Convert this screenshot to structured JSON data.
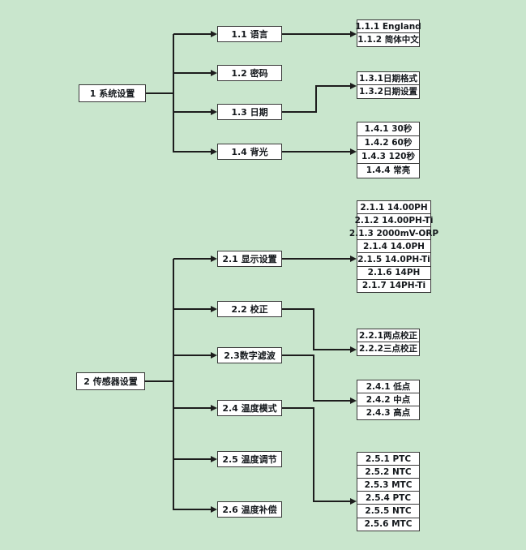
{
  "diagram": {
    "type": "menu-structure-tree",
    "colors": {
      "background": "#c9e6cd",
      "box_fill": "#ffffff",
      "box_border": "#383838",
      "connector": "#1d1d1d",
      "text": "#14181c"
    },
    "sections": [
      {
        "root": "1 系统设置",
        "branches": [
          {
            "label": "1.1 语言",
            "children": [
              "1.1.1 England",
              "1.1.2 简体中文"
            ]
          },
          {
            "label": "1.2 密码",
            "children": []
          },
          {
            "label": "1.3 日期",
            "children": [
              "1.3.1日期格式",
              "1.3.2日期设置"
            ]
          },
          {
            "label": "1.4 背光",
            "children": [
              "1.4.1 30秒",
              "1.4.2 60秒",
              "1.4.3 120秒",
              "1.4.4 常亮"
            ]
          }
        ]
      },
      {
        "root": "2 传感器设置",
        "branches": [
          {
            "label": "2.1 显示设置",
            "children": [
              "2.1.1 14.00PH",
              "2.1.2 14.00PH-Ti",
              "2.1.3 2000mV-ORP",
              "2.1.4 14.0PH",
              "2.1.5 14.0PH-Ti",
              "2.1.6 14PH",
              "2.1.7 14PH-Ti"
            ]
          },
          {
            "label": "2.2 校正",
            "children": [
              "2.2.1两点校正",
              "2.2.2三点校正"
            ]
          },
          {
            "label": "2.3数字滤波",
            "children": [
              "2.4.1 低点",
              "2.4.2 中点",
              "2.4.3 高点"
            ]
          },
          {
            "label": "2.4 温度模式",
            "children": [
              "2.5.1 PTC",
              "2.5.2 NTC",
              "2.5.3 MTC",
              "2.5.4 PTC",
              "2.5.5 NTC",
              "2.5.6 MTC"
            ]
          },
          {
            "label": "2.5 温度调节",
            "children": []
          },
          {
            "label": "2.6 温度补偿",
            "children": []
          }
        ]
      }
    ]
  }
}
